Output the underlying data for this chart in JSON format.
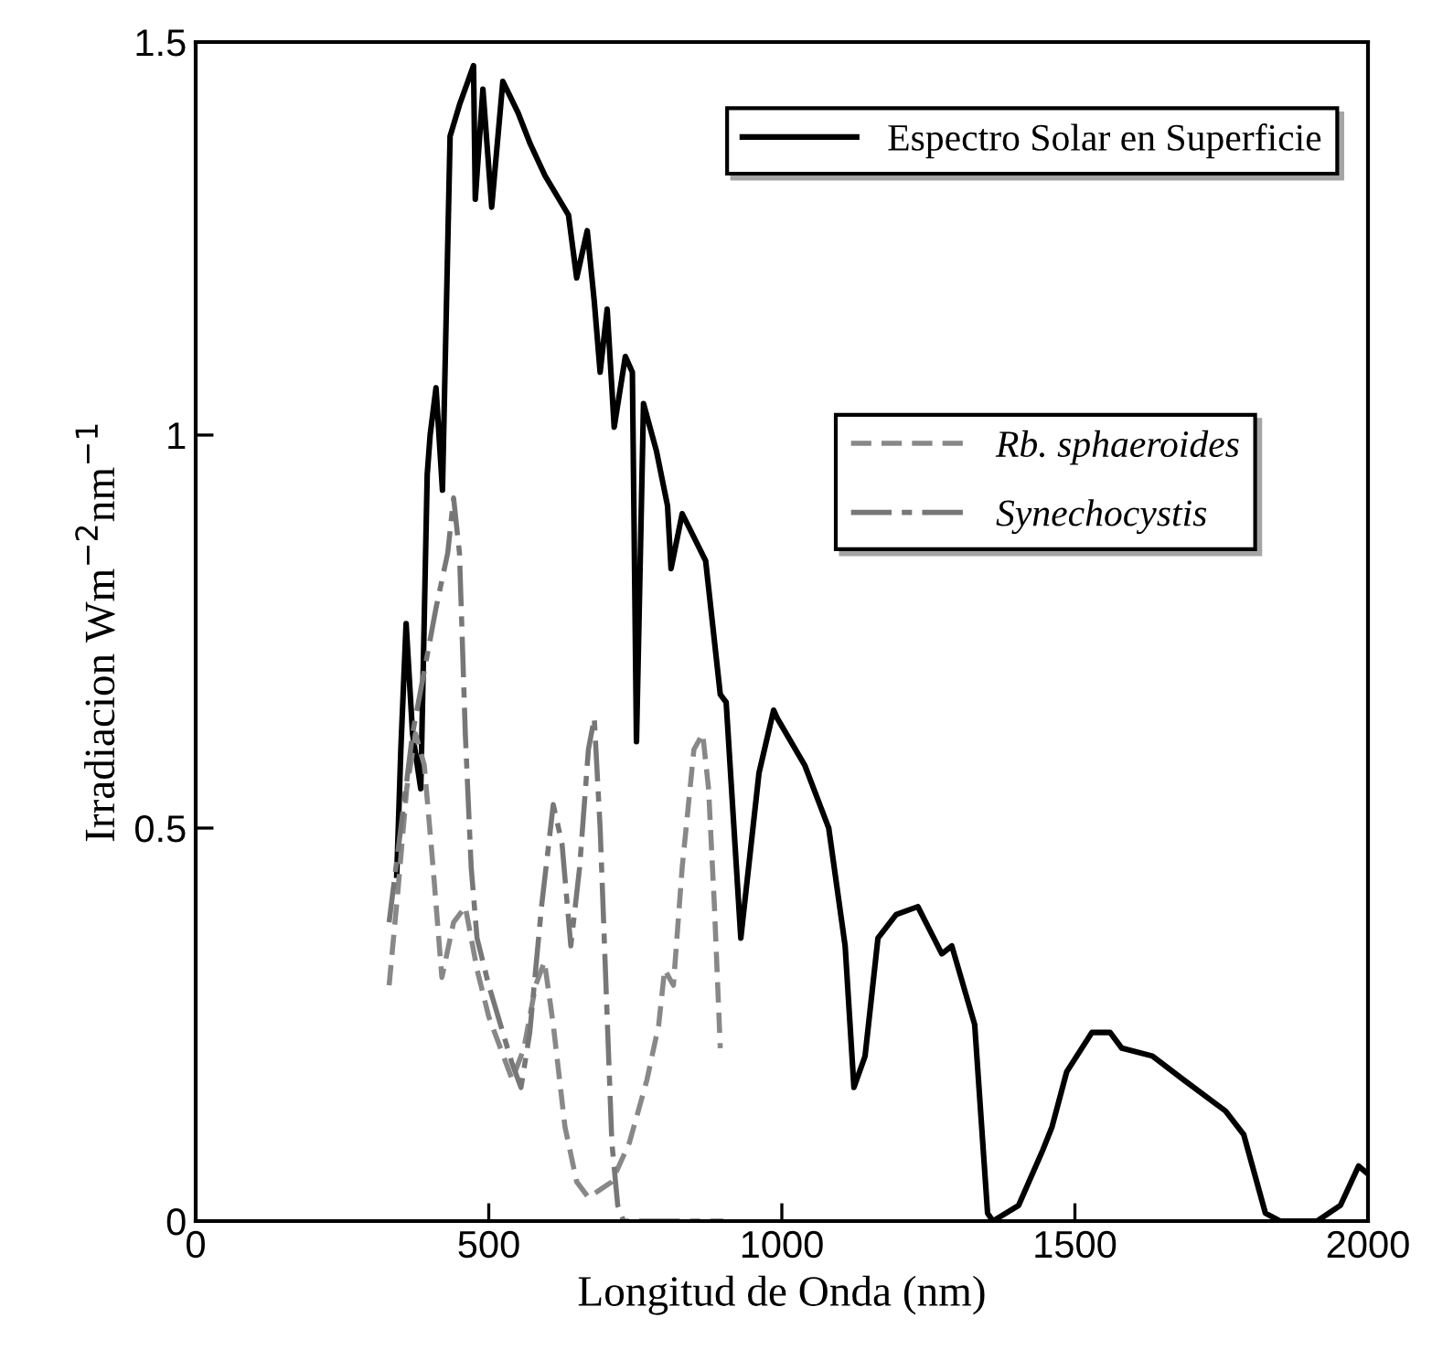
{
  "chart_data": {
    "type": "line",
    "xlabel": "Longitud de Onda (nm)",
    "ylabel": "Irradiacion Wm$^{−2}$nm$^{−1}$",
    "xlim": [
      0,
      2000
    ],
    "xticks": [
      0,
      500,
      1000,
      1500,
      2000
    ],
    "ylim": [
      0,
      1.5
    ],
    "yticks": [
      0,
      0.5,
      1,
      1.5
    ],
    "grid": false,
    "legend": "top right",
    "series": [
      {
        "name": "Espectro Solar en Superficie",
        "color": "#000000",
        "line_style": "solid",
        "x": [
          343,
          350,
          359,
          370,
          384,
          395,
          400,
          410,
          421,
          434,
          450,
          474,
          477,
          490,
          505,
          524,
          550,
          571,
          596,
          636,
          650,
          668,
          680,
          690,
          702,
          714,
          733,
          745,
          752,
          764,
          786,
          805,
          811,
          830,
          870,
          895,
          905,
          930,
          961,
          986,
          992,
          1039,
          1080,
          1108,
          1123,
          1142,
          1164,
          1195,
          1232,
          1273,
          1290,
          1329,
          1351,
          1360,
          1404,
          1445,
          1461,
          1486,
          1529,
          1560,
          1580,
          1632,
          1685,
          1757,
          1788,
          1825,
          1850,
          1913,
          1953,
          1984,
          2000
        ],
        "values": [
          0.44,
          0.6,
          0.76,
          0.62,
          0.55,
          0.95,
          1.0,
          1.06,
          0.93,
          1.38,
          1.42,
          1.47,
          1.3,
          1.44,
          1.29,
          1.45,
          1.41,
          1.37,
          1.33,
          1.28,
          1.2,
          1.26,
          1.17,
          1.08,
          1.16,
          1.01,
          1.1,
          1.08,
          0.61,
          1.04,
          0.98,
          0.91,
          0.83,
          0.9,
          0.84,
          0.67,
          0.66,
          0.36,
          0.57,
          0.65,
          0.64,
          0.58,
          0.5,
          0.35,
          0.17,
          0.21,
          0.36,
          0.39,
          0.4,
          0.34,
          0.35,
          0.25,
          0.01,
          0,
          0.02,
          0.09,
          0.12,
          0.19,
          0.24,
          0.24,
          0.22,
          0.21,
          0.18,
          0.14,
          0.11,
          0.01,
          0,
          0,
          0.02,
          0.07,
          0.06
        ]
      },
      {
        "name": "Rb. sphaeroides",
        "color": "#888888",
        "line_style": "dashed",
        "x": [
          330,
          345,
          360,
          375,
          390,
          405,
          420,
          440,
          460,
          480,
          500,
          520,
          540,
          560,
          580,
          595,
          610,
          630,
          650,
          670,
          690,
          710,
          740,
          770,
          790,
          800,
          815,
          830,
          850,
          865,
          875,
          885,
          895
        ],
        "values": [
          0.3,
          0.42,
          0.55,
          0.62,
          0.58,
          0.45,
          0.31,
          0.38,
          0.4,
          0.32,
          0.26,
          0.22,
          0.18,
          0.22,
          0.3,
          0.33,
          0.25,
          0.12,
          0.05,
          0.03,
          0.04,
          0.05,
          0.1,
          0.18,
          0.25,
          0.32,
          0.3,
          0.45,
          0.6,
          0.62,
          0.55,
          0.4,
          0.22
        ]
      },
      {
        "name": "Synechocystis",
        "color": "#777777",
        "line_style": "dashdot",
        "x": [
          330,
          350,
          370,
          390,
          410,
          430,
          440,
          450,
          460,
          470,
          480,
          500,
          520,
          540,
          555,
          570,
          590,
          610,
          625,
          640,
          655,
          670,
          680,
          690,
          700,
          710,
          720,
          730,
          800,
          900
        ],
        "values": [
          0.38,
          0.5,
          0.62,
          0.7,
          0.78,
          0.85,
          0.92,
          0.85,
          0.62,
          0.45,
          0.36,
          0.3,
          0.25,
          0.2,
          0.17,
          0.24,
          0.4,
          0.53,
          0.48,
          0.35,
          0.45,
          0.6,
          0.64,
          0.5,
          0.3,
          0.1,
          0.02,
          0,
          0,
          0
        ]
      }
    ]
  }
}
